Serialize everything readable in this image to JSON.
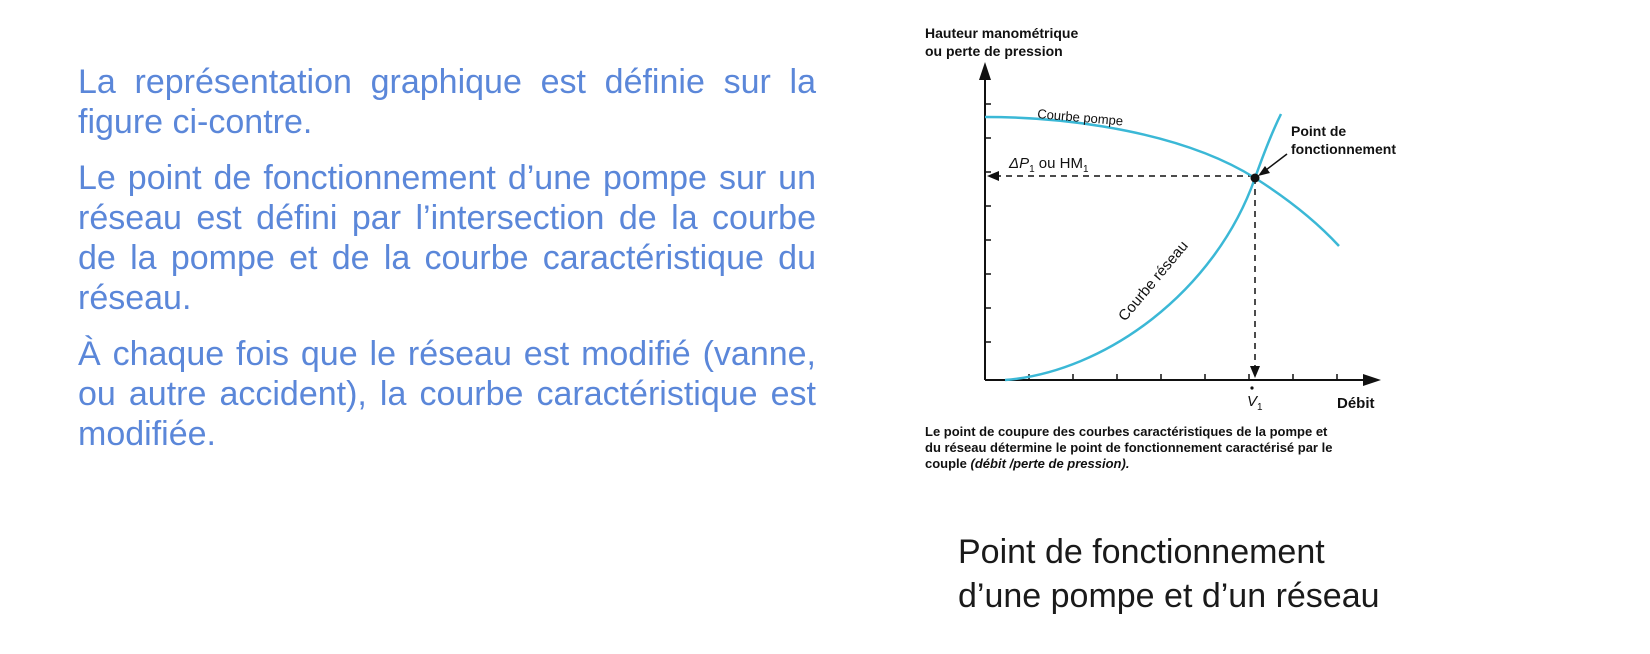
{
  "left_text": {
    "paragraph1": "La représentation graphique est définie sur la figure ci-contre.",
    "paragraph2": "Le point de fonctionnement d’une pompe sur un réseau est défini par l’intersection de la courbe de la pompe et de la courbe caractéristique du réseau.",
    "paragraph3": "À chaque fois que le réseau est modifié (vanne, ou autre accident), la courbe caractéristique est modifiée."
  },
  "diagram": {
    "y_axis_label_line1": "Hauteur manométrique",
    "y_axis_label_line2": "ou perte de pression",
    "x_axis_label": "Débit",
    "pump_curve_label": "Courbe pompe",
    "network_curve_label": "Courbe réseau",
    "operating_point_label_line1": "Point de",
    "operating_point_label_line2": "fonctionnement",
    "pressure_label_prefix": "ΔP",
    "pressure_label_sub": "1",
    "pressure_label_mid": " ou HM",
    "pressure_label_sub2": "1",
    "flow_label": "V",
    "flow_label_sub": "1",
    "caption_line1": "Le point de coupure des courbes caractéristiques de la pompe et",
    "caption_line2": "du réseau détermine le point de fonctionnement caractérisé par le",
    "caption_line3_start": "couple ",
    "caption_line3_italic": "(débit /perte de pression).",
    "curve_color": "#3bb8d6"
  },
  "figure_title": {
    "line1": "Point de fonctionnement",
    "line2": "d’une pompe et d’un réseau"
  }
}
